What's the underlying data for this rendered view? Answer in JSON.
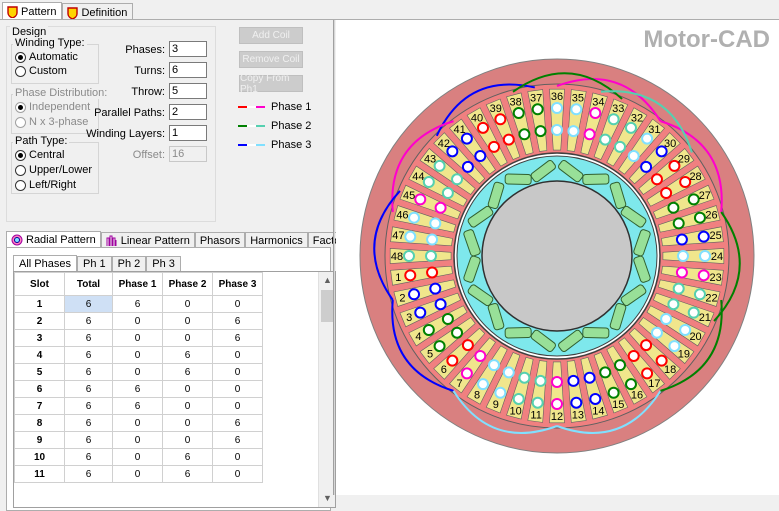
{
  "top_tabs": [
    {
      "label": "Pattern",
      "active": true
    },
    {
      "label": "Definition",
      "active": false
    }
  ],
  "design": {
    "title": "Design",
    "winding_type": {
      "label": "Winding Type:",
      "options": [
        "Automatic",
        "Custom"
      ],
      "selected": "Automatic"
    },
    "phase_distribution": {
      "label": "Phase Distribution:",
      "options": [
        "Independent",
        "N x 3-phase"
      ],
      "selected": "Independent"
    },
    "path_type": {
      "label": "Path Type:",
      "options": [
        "Central",
        "Upper/Lower",
        "Left/Right"
      ],
      "selected": "Central"
    },
    "fields": [
      {
        "label": "Phases:",
        "value": "3"
      },
      {
        "label": "Turns:",
        "value": "6"
      },
      {
        "label": "Throw:",
        "value": "5"
      },
      {
        "label": "Parallel Paths:",
        "value": "2"
      },
      {
        "label": "Winding Layers:",
        "value": "1"
      },
      {
        "label": "Offset:",
        "value": "16"
      }
    ]
  },
  "buttons": {
    "add_coil": "Add Coil",
    "remove_coil": "Remove Coil",
    "copy_from": "Copy From Ph1"
  },
  "phase_legend": [
    {
      "label": "Phase 1",
      "c1": "#ff0000",
      "c2": "#ff00cc"
    },
    {
      "label": "Phase 2",
      "c1": "#008000",
      "c2": "#55d0b0"
    },
    {
      "label": "Phase 3",
      "c1": "#0000ff",
      "c2": "#80e0ff"
    }
  ],
  "view_tabs": [
    "Radial Pattern",
    "Linear Pattern",
    "Phasors",
    "Harmonics",
    "Factors"
  ],
  "phase_tabs": [
    "All Phases",
    "Ph 1",
    "Ph 2",
    "Ph 3"
  ],
  "table": {
    "headers": [
      "Slot",
      "Total",
      "Phase 1",
      "Phase 2",
      "Phase 3"
    ],
    "rows": [
      [
        "1",
        "6",
        "6",
        "0",
        "0"
      ],
      [
        "2",
        "6",
        "0",
        "0",
        "6"
      ],
      [
        "3",
        "6",
        "0",
        "0",
        "6"
      ],
      [
        "4",
        "6",
        "0",
        "6",
        "0"
      ],
      [
        "5",
        "6",
        "0",
        "6",
        "0"
      ],
      [
        "6",
        "6",
        "6",
        "0",
        "0"
      ],
      [
        "7",
        "6",
        "6",
        "0",
        "0"
      ],
      [
        "8",
        "6",
        "0",
        "0",
        "6"
      ],
      [
        "9",
        "6",
        "0",
        "0",
        "6"
      ],
      [
        "10",
        "6",
        "0",
        "6",
        "0"
      ],
      [
        "11",
        "6",
        "0",
        "6",
        "0"
      ]
    ]
  },
  "brand": "Motor-CAD",
  "slot_count": 48,
  "colors": {
    "housing": "#d98080",
    "stator_core": "#f08080",
    "slot_fill": "#f0e68c",
    "rotor_core": "#7ee8ec",
    "magnet": "#98e098",
    "shaft": "#c8c8c8"
  }
}
